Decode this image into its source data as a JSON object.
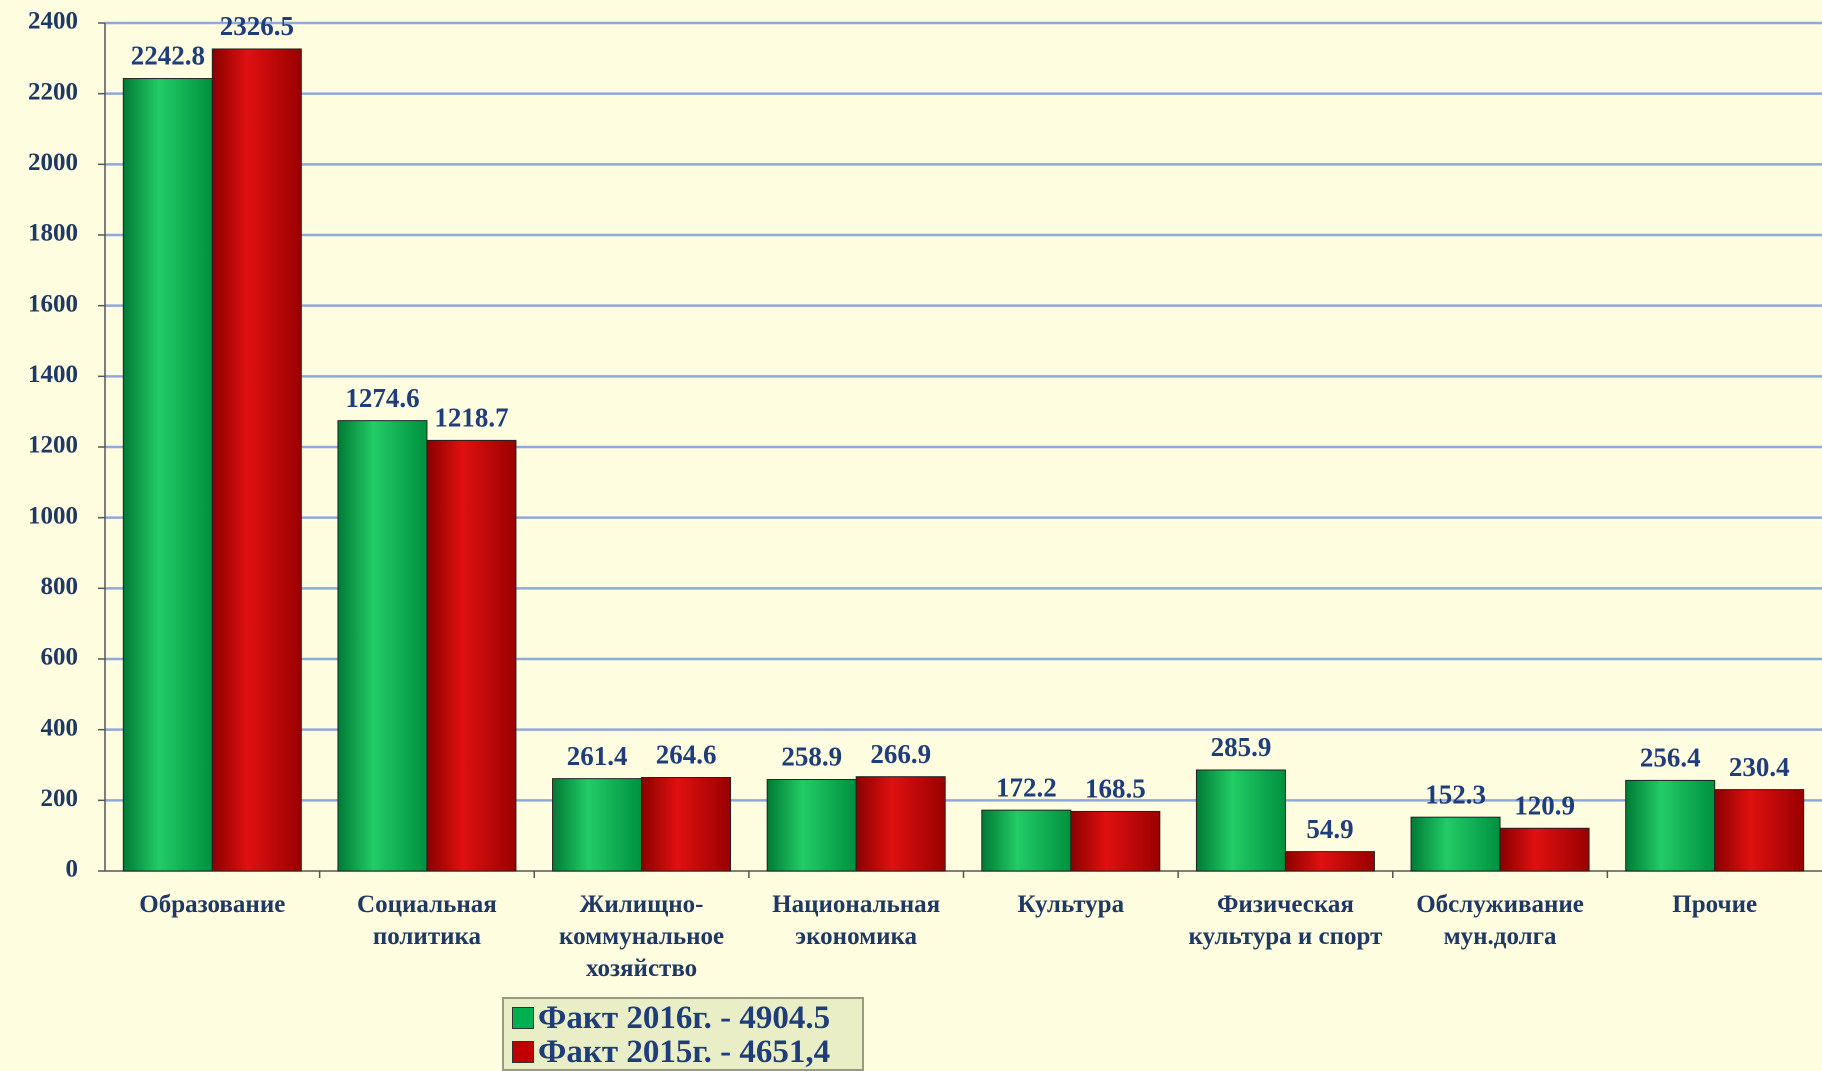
{
  "chart_data": {
    "type": "bar",
    "categories": [
      "Образование",
      "Социальная политика",
      "Жилищно-коммунальное хозяйство",
      "Национальная экономика",
      "Культура",
      "Физическая культура и спорт",
      "Обслуживание мун.долга",
      "Прочие"
    ],
    "series": [
      {
        "name": "Факт 2016г. - 4904.5",
        "color": "#00b050",
        "values": [
          2242.8,
          1274.6,
          261.4,
          258.9,
          172.2,
          285.9,
          152.3,
          256.4
        ]
      },
      {
        "name": "Факт 2015г. - 4651,4",
        "color": "#c00000",
        "values": [
          2326.5,
          1218.7,
          264.6,
          266.9,
          168.5,
          54.9,
          120.9,
          230.4
        ]
      }
    ],
    "ylim": [
      0,
      2400
    ],
    "yticks": [
      0,
      200,
      400,
      600,
      800,
      1000,
      1200,
      1400,
      1600,
      1800,
      2000,
      2200,
      2400
    ],
    "grid": true,
    "legend": "bottom"
  }
}
